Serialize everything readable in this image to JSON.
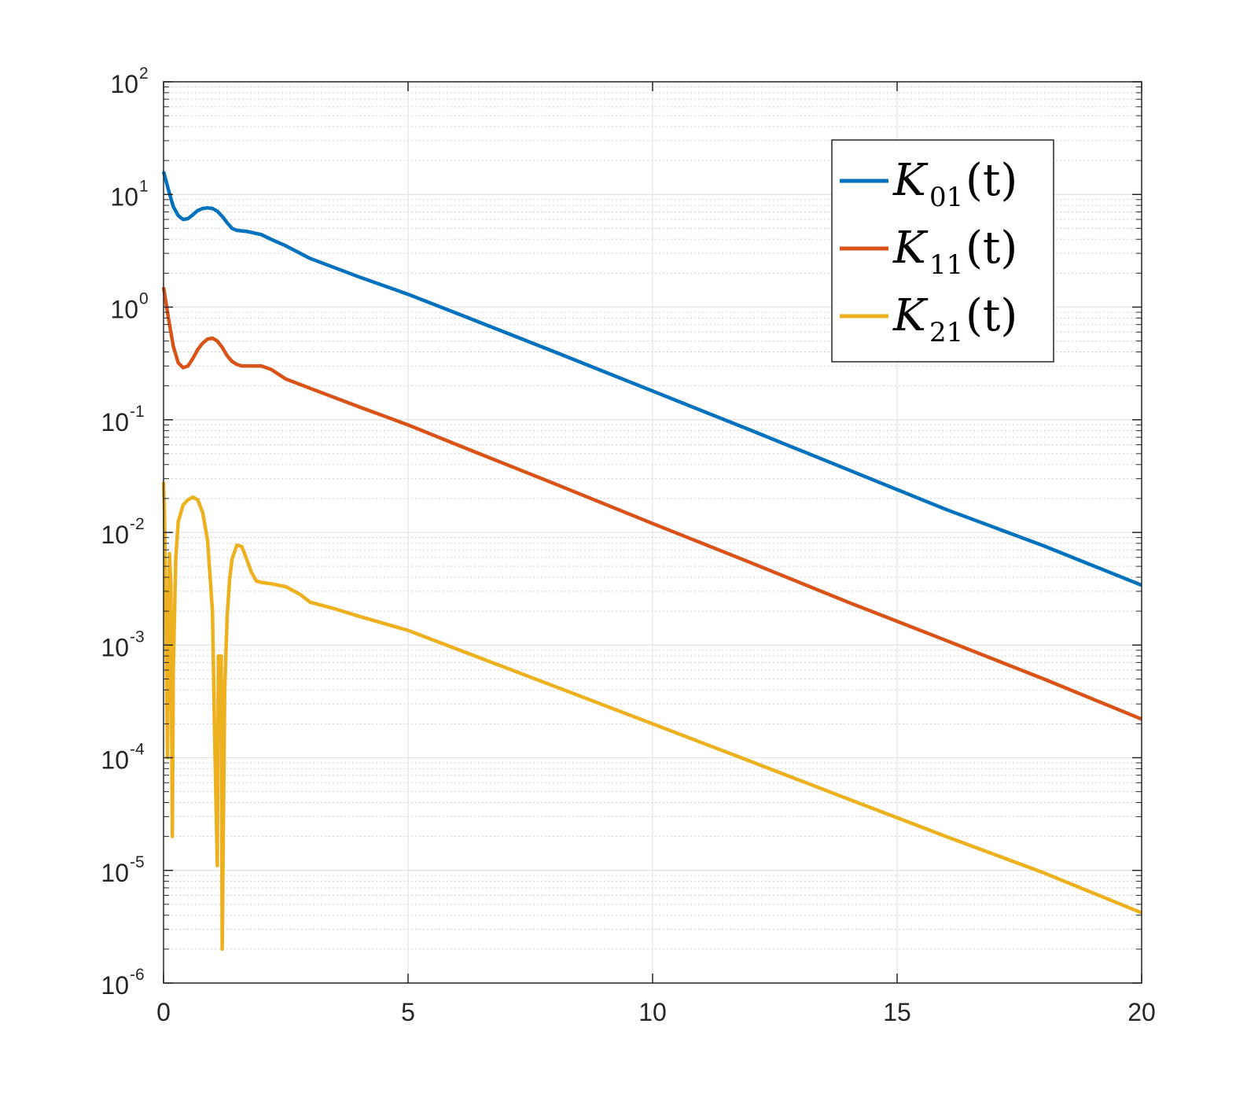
{
  "chart_data": {
    "type": "line",
    "title": "",
    "xlabel": "",
    "ylabel": "",
    "xlim": [
      0,
      20
    ],
    "ylim": [
      1e-06,
      100
    ],
    "yscale": "log",
    "grid": true,
    "minor_grid": true,
    "legend_position": "top-right",
    "x_ticks": [
      {
        "value": 0,
        "label": "0"
      },
      {
        "value": 5,
        "label": "5"
      },
      {
        "value": 10,
        "label": "10"
      },
      {
        "value": 15,
        "label": "15"
      },
      {
        "value": 20,
        "label": "20"
      }
    ],
    "y_ticks": [
      {
        "value": 1e-06,
        "base": "10",
        "exp": "-6"
      },
      {
        "value": 1e-05,
        "base": "10",
        "exp": "-5"
      },
      {
        "value": 0.0001,
        "base": "10",
        "exp": "-4"
      },
      {
        "value": 0.001,
        "base": "10",
        "exp": "-3"
      },
      {
        "value": 0.01,
        "base": "10",
        "exp": "-2"
      },
      {
        "value": 0.1,
        "base": "10",
        "exp": "-1"
      },
      {
        "value": 1.0,
        "base": "10",
        "exp": "0"
      },
      {
        "value": 10.0,
        "base": "10",
        "exp": "1"
      },
      {
        "value": 100.0,
        "base": "10",
        "exp": "2"
      }
    ],
    "series": [
      {
        "name": "K01(t)",
        "legend_main": "K",
        "legend_sub": "01",
        "legend_arg": "(t)",
        "color": "#0072BD",
        "x": [
          0,
          0.1,
          0.2,
          0.3,
          0.4,
          0.5,
          0.6,
          0.7,
          0.8,
          0.9,
          1.0,
          1.1,
          1.2,
          1.3,
          1.4,
          1.5,
          1.6,
          1.7,
          1.8,
          2.0,
          2.2,
          2.5,
          3.0,
          4.0,
          5.0,
          6.0,
          8.0,
          10.0,
          12.0,
          14.0,
          16.0,
          18.0,
          20.0
        ],
        "y": [
          16,
          11,
          7.8,
          6.5,
          6.0,
          6.1,
          6.6,
          7.2,
          7.5,
          7.6,
          7.5,
          7.1,
          6.4,
          5.6,
          5.0,
          4.8,
          4.75,
          4.7,
          4.6,
          4.4,
          4.0,
          3.5,
          2.7,
          1.85,
          1.3,
          0.88,
          0.4,
          0.18,
          0.081,
          0.036,
          0.016,
          0.0076,
          0.0034
        ]
      },
      {
        "name": "K11(t)",
        "legend_main": "K",
        "legend_sub": "11",
        "legend_arg": "(t)",
        "color": "#D95319",
        "x": [
          0,
          0.1,
          0.2,
          0.3,
          0.4,
          0.5,
          0.6,
          0.7,
          0.8,
          0.9,
          1.0,
          1.1,
          1.2,
          1.3,
          1.4,
          1.5,
          1.6,
          1.7,
          1.8,
          2.0,
          2.2,
          2.5,
          3.0,
          4.0,
          5.0,
          6.0,
          8.0,
          10.0,
          12.0,
          14.0,
          16.0,
          18.0,
          20.0
        ],
        "y": [
          1.5,
          0.8,
          0.45,
          0.32,
          0.29,
          0.3,
          0.35,
          0.42,
          0.48,
          0.52,
          0.53,
          0.5,
          0.44,
          0.37,
          0.33,
          0.31,
          0.3,
          0.3,
          0.3,
          0.3,
          0.28,
          0.23,
          0.19,
          0.13,
          0.09,
          0.06,
          0.027,
          0.012,
          0.0054,
          0.0024,
          0.0011,
          0.0005,
          0.00022
        ]
      },
      {
        "name": "K21(t)",
        "legend_main": "K",
        "legend_sub": "21",
        "legend_arg": "(t)",
        "color": "#EDB120",
        "x": [
          0,
          0.02,
          0.05,
          0.08,
          0.12,
          0.15,
          0.18,
          0.2,
          0.25,
          0.3,
          0.4,
          0.5,
          0.6,
          0.7,
          0.8,
          0.9,
          1.0,
          1.05,
          1.1,
          1.12,
          1.15,
          1.18,
          1.2,
          1.25,
          1.3,
          1.35,
          1.4,
          1.5,
          1.6,
          1.7,
          1.8,
          1.9,
          2.0,
          2.2,
          2.5,
          2.8,
          3.0,
          3.5,
          4.0,
          5.0,
          6.0,
          8.0,
          10.0,
          12.0,
          14.0,
          16.0,
          18.0,
          20.0
        ],
        "y": [
          0.028,
          0.015,
          0.0015,
          0.0001,
          0.0065,
          0.0035,
          2e-05,
          0.0006,
          0.006,
          0.0125,
          0.0175,
          0.0195,
          0.0205,
          0.0195,
          0.015,
          0.0085,
          0.002,
          0.00012,
          1.1e-05,
          0.0008,
          0.0008,
          0.0008,
          2e-06,
          0.0004,
          0.0018,
          0.0038,
          0.0058,
          0.0077,
          0.0075,
          0.0058,
          0.0044,
          0.0037,
          0.0036,
          0.0035,
          0.0033,
          0.0028,
          0.0024,
          0.0021,
          0.0018,
          0.00135,
          0.00092,
          0.00043,
          0.0002,
          9.3e-05,
          4.3e-05,
          2e-05,
          9.5e-06,
          4.2e-06
        ]
      }
    ]
  }
}
